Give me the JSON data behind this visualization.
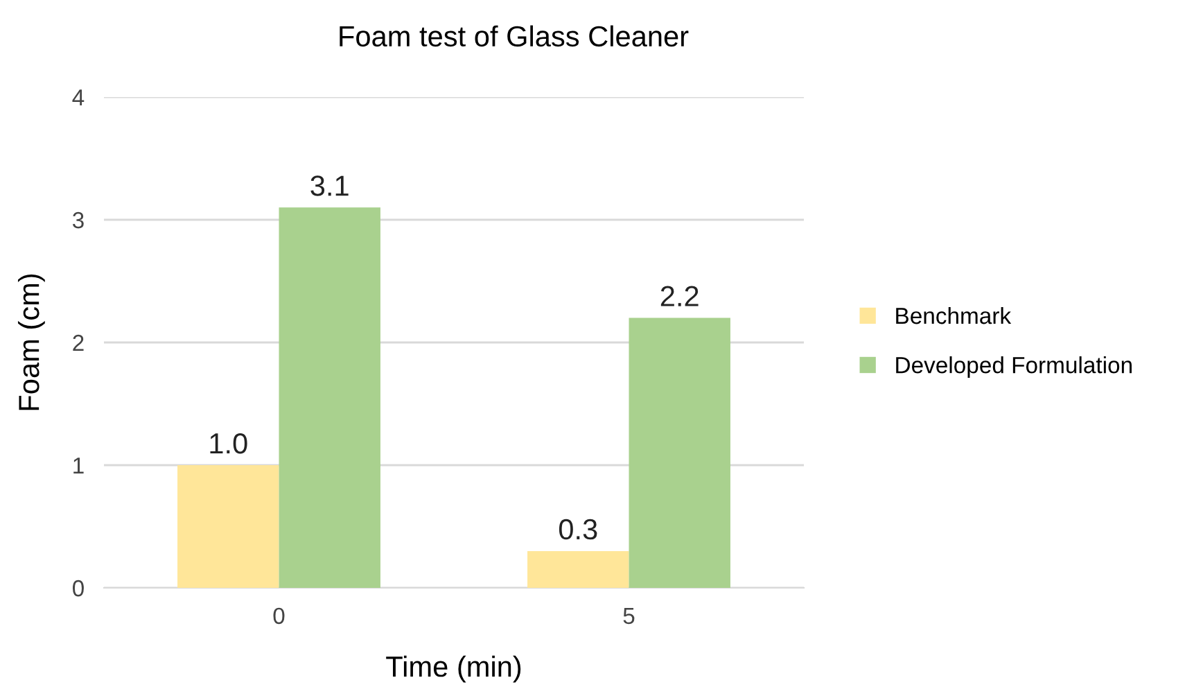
{
  "chart_data": {
    "type": "bar",
    "title": "Foam test of Glass Cleaner",
    "xlabel": "Time (min)",
    "ylabel": "Foam (cm)",
    "categories": [
      "0",
      "5"
    ],
    "series": [
      {
        "name": "Benchmark",
        "color": "#ffe699",
        "values": [
          1.0,
          0.3
        ],
        "value_labels": [
          "1.0",
          "0.3"
        ]
      },
      {
        "name": "Developed Formulation",
        "color": "#a9d18e",
        "values": [
          3.1,
          2.2
        ],
        "value_labels": [
          "3.1",
          "2.2"
        ]
      }
    ],
    "ylim": [
      0,
      4
    ],
    "yticks": [
      0,
      1,
      2,
      3,
      4
    ],
    "grid": "y",
    "legend": "right"
  }
}
